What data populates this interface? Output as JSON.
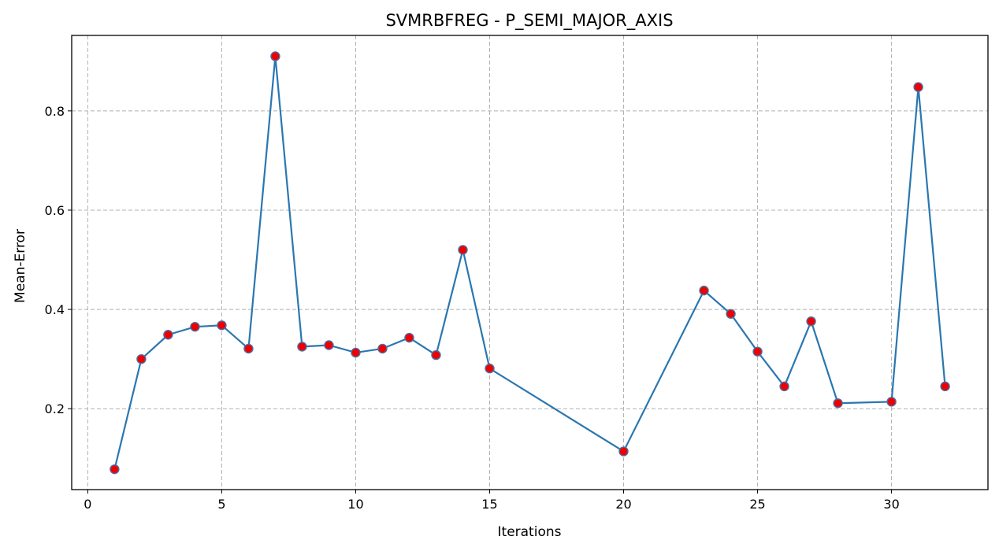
{
  "chart_data": {
    "type": "line",
    "title": "SVMRBFREG - P_SEMI_MAJOR_AXIS",
    "xlabel": "Iterations",
    "ylabel": "Mean-Error",
    "xlim": [
      -0.6,
      33.6
    ],
    "ylim": [
      0.037,
      0.952
    ],
    "xticks": [
      0,
      5,
      10,
      15,
      20,
      25,
      30
    ],
    "yticks": [
      0.2,
      0.4,
      0.6,
      0.8
    ],
    "grid": true,
    "colors": {
      "line": "#2a77b0",
      "marker_fill": "#ee0000",
      "marker_edge": "#4a6fa5"
    },
    "series": [
      {
        "x": [
          1,
          2,
          3,
          4,
          5,
          6,
          7,
          8,
          9,
          10,
          11,
          12,
          13,
          14,
          15,
          20,
          23,
          24,
          25,
          26,
          27,
          28,
          30,
          31,
          32
        ],
        "y": [
          0.078,
          0.3,
          0.349,
          0.365,
          0.368,
          0.321,
          0.91,
          0.325,
          0.328,
          0.313,
          0.321,
          0.343,
          0.308,
          0.52,
          0.281,
          0.114,
          0.438,
          0.391,
          0.315,
          0.245,
          0.376,
          0.211,
          0.214,
          0.848,
          0.245
        ]
      }
    ]
  }
}
